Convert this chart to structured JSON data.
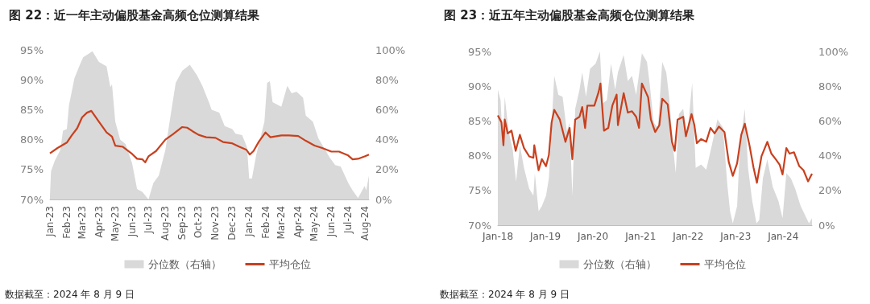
{
  "chart_data": [
    {
      "type": "area",
      "title": "图 22：近一年主动偏股基金高频仓位测算结果",
      "annotations": [
        "数据截至：2024 年 8 月 9 日"
      ],
      "legend": "bottom",
      "xlim": [
        "2023-01-01",
        "2024-08-09"
      ],
      "xticks": [
        {
          "value": "2023-01-01",
          "label": "Jan-23"
        },
        {
          "value": "2023-02-01",
          "label": "Feb-23"
        },
        {
          "value": "2023-03-01",
          "label": "Mar-23"
        },
        {
          "value": "2023-04-01",
          "label": "Apr-23"
        },
        {
          "value": "2023-05-01",
          "label": "May-23"
        },
        {
          "value": "2023-06-01",
          "label": "Jun-23"
        },
        {
          "value": "2023-07-01",
          "label": "Jul-23"
        },
        {
          "value": "2023-08-01",
          "label": "Aug-23"
        },
        {
          "value": "2023-09-01",
          "label": "Sep-23"
        },
        {
          "value": "2023-10-01",
          "label": "Oct-23"
        },
        {
          "value": "2023-11-01",
          "label": "Nov-23"
        },
        {
          "value": "2023-12-01",
          "label": "Dec-23"
        },
        {
          "value": "2024-01-01",
          "label": "Jan-24"
        },
        {
          "value": "2024-02-01",
          "label": "Feb-24"
        },
        {
          "value": "2024-03-01",
          "label": "Mar-24"
        },
        {
          "value": "2024-04-01",
          "label": "Apr-24"
        },
        {
          "value": "2024-05-01",
          "label": "May-24"
        },
        {
          "value": "2024-06-01",
          "label": "Jun-24"
        },
        {
          "value": "2024-07-01",
          "label": "Jul-24"
        },
        {
          "value": "2024-08-01",
          "label": "Aug-24"
        }
      ],
      "ylim": [
        70,
        95
      ],
      "yticks": [
        {
          "value": 70,
          "label": "70%"
        },
        {
          "value": 75,
          "label": "75%"
        },
        {
          "value": 80,
          "label": "80%"
        },
        {
          "value": 85,
          "label": "85%"
        },
        {
          "value": 90,
          "label": "90%"
        },
        {
          "value": 95,
          "label": "95%"
        }
      ],
      "y2lim": [
        0,
        100
      ],
      "y2ticks": [
        {
          "value": 0,
          "label": "0%"
        },
        {
          "value": 20,
          "label": "20%"
        },
        {
          "value": 40,
          "label": "40%"
        },
        {
          "value": 60,
          "label": "60%"
        },
        {
          "value": 80,
          "label": "80%"
        },
        {
          "value": 100,
          "label": "100%"
        }
      ],
      "series": [
        {
          "name": "分位数（右轴）",
          "type": "area",
          "axis": "y2",
          "color": "#d9d9d9",
          "x": [
            "2023-01-01",
            "2023-01-03",
            "2023-01-10",
            "2023-01-20",
            "2023-01-25",
            "2023-02-01",
            "2023-02-05",
            "2023-02-15",
            "2023-02-25",
            "2023-03-03",
            "2023-03-20",
            "2023-04-01",
            "2023-04-15",
            "2023-04-22",
            "2023-04-25",
            "2023-05-01",
            "2023-05-10",
            "2023-05-20",
            "2023-06-01",
            "2023-06-10",
            "2023-06-20",
            "2023-07-01",
            "2023-07-10",
            "2023-07-20",
            "2023-08-01",
            "2023-08-08",
            "2023-08-20",
            "2023-09-01",
            "2023-09-15",
            "2023-09-28",
            "2023-10-08",
            "2023-10-20",
            "2023-10-25",
            "2023-11-08",
            "2023-11-18",
            "2023-12-02",
            "2023-12-08",
            "2023-12-20",
            "2023-12-29",
            "2024-01-02",
            "2024-01-07",
            "2024-01-15",
            "2024-01-30",
            "2024-02-04",
            "2024-02-09",
            "2024-02-14",
            "2024-03-01",
            "2024-03-12",
            "2024-03-20",
            "2024-03-29",
            "2024-04-10",
            "2024-04-15",
            "2024-04-28",
            "2024-05-08",
            "2024-05-29",
            "2024-06-08",
            "2024-06-18",
            "2024-07-02",
            "2024-07-10",
            "2024-07-20",
            "2024-08-01",
            "2024-08-04",
            "2024-08-09"
          ],
          "values": [
            2,
            19,
            26,
            33,
            46,
            47,
            63,
            81,
            90,
            95,
            99,
            92,
            89,
            75,
            77,
            52,
            40,
            37,
            24,
            7,
            5,
            0,
            11,
            16,
            33,
            50,
            78,
            86,
            90,
            83,
            76,
            65,
            60,
            58,
            49,
            47,
            44,
            43,
            35,
            14,
            14,
            30,
            52,
            78,
            79,
            65,
            62,
            76,
            71,
            72,
            68,
            56,
            52,
            41,
            28,
            23,
            22,
            11,
            6,
            1,
            9,
            6,
            16
          ]
        },
        {
          "name": "平均仓位",
          "type": "line",
          "color": "#c8401e",
          "x": [
            "2023-01-01",
            "2023-01-15",
            "2023-02-01",
            "2023-02-10",
            "2023-02-20",
            "2023-03-01",
            "2023-03-10",
            "2023-03-18",
            "2023-04-01",
            "2023-04-15",
            "2023-04-25",
            "2023-05-01",
            "2023-05-15",
            "2023-06-01",
            "2023-06-10",
            "2023-06-20",
            "2023-06-25",
            "2023-07-01",
            "2023-07-15",
            "2023-08-01",
            "2023-08-15",
            "2023-09-01",
            "2023-09-10",
            "2023-09-20",
            "2023-10-01",
            "2023-10-15",
            "2023-11-01",
            "2023-11-15",
            "2023-12-01",
            "2023-12-15",
            "2023-12-28",
            "2024-01-03",
            "2024-01-10",
            "2024-01-20",
            "2024-02-01",
            "2024-02-10",
            "2024-03-01",
            "2024-03-15",
            "2024-04-01",
            "2024-04-15",
            "2024-05-01",
            "2024-05-15",
            "2024-06-01",
            "2024-06-15",
            "2024-07-01",
            "2024-07-10",
            "2024-07-20",
            "2024-08-01",
            "2024-08-09"
          ],
          "values": [
            77.7,
            78.6,
            79.5,
            80.7,
            81.9,
            83.7,
            84.5,
            84.8,
            83.0,
            81.2,
            80.5,
            79.0,
            78.8,
            77.6,
            76.8,
            76.7,
            76.2,
            77.2,
            78.1,
            80.0,
            80.9,
            82.1,
            82.0,
            81.4,
            80.8,
            80.4,
            80.3,
            79.6,
            79.4,
            78.8,
            78.3,
            77.5,
            78.1,
            79.7,
            81.2,
            80.4,
            80.7,
            80.7,
            80.6,
            79.8,
            79.0,
            78.6,
            78.0,
            78.0,
            77.4,
            76.7,
            76.8,
            77.2,
            77.5
          ]
        }
      ]
    },
    {
      "type": "area",
      "title": "图 23：近五年主动偏股基金高频仓位测算结果",
      "annotations": [
        "数据截至：2024 年 8 月 9 日"
      ],
      "legend": "bottom",
      "xlim": [
        "2018-01-01",
        "2024-08-09"
      ],
      "xticks": [
        {
          "value": "2018-01-01",
          "label": "Jan-18"
        },
        {
          "value": "2019-01-01",
          "label": "Jan-19"
        },
        {
          "value": "2020-01-01",
          "label": "Jan-20"
        },
        {
          "value": "2021-01-01",
          "label": "Jan-21"
        },
        {
          "value": "2022-01-01",
          "label": "Jan-22"
        },
        {
          "value": "2023-01-01",
          "label": "Jan-23"
        },
        {
          "value": "2024-01-01",
          "label": "Jan-24"
        }
      ],
      "ylim": [
        70,
        95
      ],
      "yticks": [
        {
          "value": 70,
          "label": "70%"
        },
        {
          "value": 75,
          "label": "75%"
        },
        {
          "value": 80,
          "label": "80%"
        },
        {
          "value": 85,
          "label": "85%"
        },
        {
          "value": 90,
          "label": "90%"
        },
        {
          "value": 95,
          "label": "95%"
        }
      ],
      "y2lim": [
        0,
        100
      ],
      "y2ticks": [
        {
          "value": 0,
          "label": "0%"
        },
        {
          "value": 20,
          "label": "20%"
        },
        {
          "value": 40,
          "label": "40%"
        },
        {
          "value": 60,
          "label": "60%"
        },
        {
          "value": 80,
          "label": "80%"
        },
        {
          "value": 100,
          "label": "100%"
        }
      ],
      "series": [
        {
          "name": "分位数（右轴）",
          "type": "area",
          "axis": "y2",
          "color": "#d9d9d9",
          "x": [
            "2018-01-01",
            "2018-01-22",
            "2018-02-09",
            "2018-02-23",
            "2018-03-25",
            "2018-04-26",
            "2018-05-21",
            "2018-06-19",
            "2018-07-21",
            "2018-08-30",
            "2018-10-01",
            "2018-10-12",
            "2018-11-10",
            "2018-12-05",
            "2019-01-06",
            "2019-01-28",
            "2019-03-10",
            "2019-04-11",
            "2019-05-13",
            "2019-06-15",
            "2019-07-06",
            "2019-07-27",
            "2019-08-18",
            "2019-09-20",
            "2019-10-11",
            "2019-11-09",
            "2019-12-10",
            "2020-01-22",
            "2020-02-24",
            "2020-03-15",
            "2020-04-17",
            "2020-05-19",
            "2020-06-20",
            "2020-07-11",
            "2020-08-24",
            "2020-09-25",
            "2020-10-27",
            "2020-11-28",
            "2021-01-11",
            "2021-02-19",
            "2021-03-11",
            "2021-04-12",
            "2021-05-14",
            "2021-06-16",
            "2021-07-17",
            "2021-08-08",
            "2021-09-10",
            "2021-09-28",
            "2021-10-22",
            "2021-11-24",
            "2021-12-25",
            "2022-02-01",
            "2022-02-28",
            "2022-04-11",
            "2022-05-20",
            "2022-07-02",
            "2022-08-14",
            "2022-09-26",
            "2022-10-28",
            "2022-11-19",
            "2022-12-10",
            "2023-01-12",
            "2023-02-03",
            "2023-03-12",
            "2023-04-06",
            "2023-05-08",
            "2023-06-10",
            "2023-07-01",
            "2023-07-29",
            "2023-09-01",
            "2023-10-13",
            "2023-11-25",
            "2023-12-27",
            "2024-01-25",
            "2024-02-29",
            "2024-04-02",
            "2024-05-14",
            "2024-06-15",
            "2024-07-17",
            "2024-08-09"
          ],
          "values": [
            78,
            72,
            45,
            74,
            54,
            43,
            25,
            46,
            33,
            21,
            17,
            30,
            8,
            11,
            17,
            27,
            86,
            75,
            74,
            54,
            59,
            17,
            67,
            78,
            88,
            74,
            90,
            93,
            100,
            70,
            72,
            93,
            78,
            88,
            98,
            83,
            86,
            75,
            99,
            94,
            82,
            59,
            56,
            94,
            88,
            74,
            43,
            30,
            64,
            67,
            51,
            82,
            33,
            35,
            32,
            46,
            61,
            56,
            24,
            8,
            1,
            11,
            46,
            67,
            33,
            14,
            1,
            3,
            27,
            38,
            22,
            14,
            4,
            30,
            27,
            21,
            11,
            6,
            1,
            4
          ]
        },
        {
          "name": "平均仓位",
          "type": "line",
          "color": "#c8401e",
          "x": [
            "2018-01-01",
            "2018-01-29",
            "2018-02-13",
            "2018-02-23",
            "2018-03-18",
            "2018-04-16",
            "2018-05-18",
            "2018-06-19",
            "2018-07-21",
            "2018-08-30",
            "2018-10-01",
            "2018-10-08",
            "2018-11-10",
            "2018-12-05",
            "2019-01-06",
            "2019-01-28",
            "2019-02-18",
            "2019-03-10",
            "2019-04-22",
            "2019-06-04",
            "2019-07-06",
            "2019-07-27",
            "2019-08-18",
            "2019-09-20",
            "2019-10-11",
            "2019-11-02",
            "2019-11-19",
            "2020-01-12",
            "2020-02-14",
            "2020-02-28",
            "2020-03-26",
            "2020-04-28",
            "2020-05-29",
            "2020-07-01",
            "2020-07-11",
            "2020-08-24",
            "2020-09-25",
            "2020-10-27",
            "2020-11-28",
            "2020-12-20",
            "2021-01-11",
            "2021-02-09",
            "2021-02-28",
            "2021-03-21",
            "2021-04-23",
            "2021-05-25",
            "2021-06-16",
            "2021-07-28",
            "2021-08-30",
            "2021-09-20",
            "2021-10-12",
            "2021-11-24",
            "2021-12-15",
            "2022-01-27",
            "2022-02-18",
            "2022-03-09",
            "2022-04-11",
            "2022-05-20",
            "2022-06-22",
            "2022-07-23",
            "2022-08-25",
            "2022-10-07",
            "2022-11-09",
            "2022-12-10",
            "2023-01-12",
            "2023-02-13",
            "2023-03-12",
            "2023-04-17",
            "2023-05-18",
            "2023-06-13",
            "2023-07-18",
            "2023-09-01",
            "2023-10-02",
            "2023-11-04",
            "2023-12-05",
            "2023-12-27",
            "2024-01-25",
            "2024-02-19",
            "2024-03-24",
            "2024-05-03",
            "2024-06-05",
            "2024-07-10",
            "2024-08-09"
          ],
          "values": [
            85.8,
            84.8,
            81.5,
            85.2,
            83.2,
            83.6,
            80.7,
            83.0,
            81.1,
            79.9,
            79.7,
            81.5,
            77.9,
            79.5,
            78.5,
            80.1,
            84.8,
            86.6,
            85.2,
            82.0,
            84.0,
            79.5,
            85.2,
            85.6,
            87.0,
            84.0,
            87.2,
            87.2,
            89.2,
            90.4,
            83.6,
            84.0,
            87.2,
            88.8,
            84.4,
            89.0,
            86.2,
            86.4,
            85.6,
            84.0,
            90.4,
            89.2,
            88.4,
            85.2,
            83.4,
            84.4,
            88.2,
            87.4,
            82.0,
            80.7,
            85.2,
            85.6,
            82.8,
            86.0,
            84.4,
            81.8,
            82.4,
            82.0,
            84.0,
            83.2,
            84.2,
            83.4,
            79.1,
            77.1,
            78.9,
            83.0,
            84.6,
            81.5,
            78.3,
            76.1,
            79.9,
            82.0,
            80.3,
            79.5,
            78.7,
            77.3,
            81.1,
            80.3,
            80.5,
            78.5,
            77.9,
            76.3,
            77.4
          ]
        }
      ]
    }
  ]
}
